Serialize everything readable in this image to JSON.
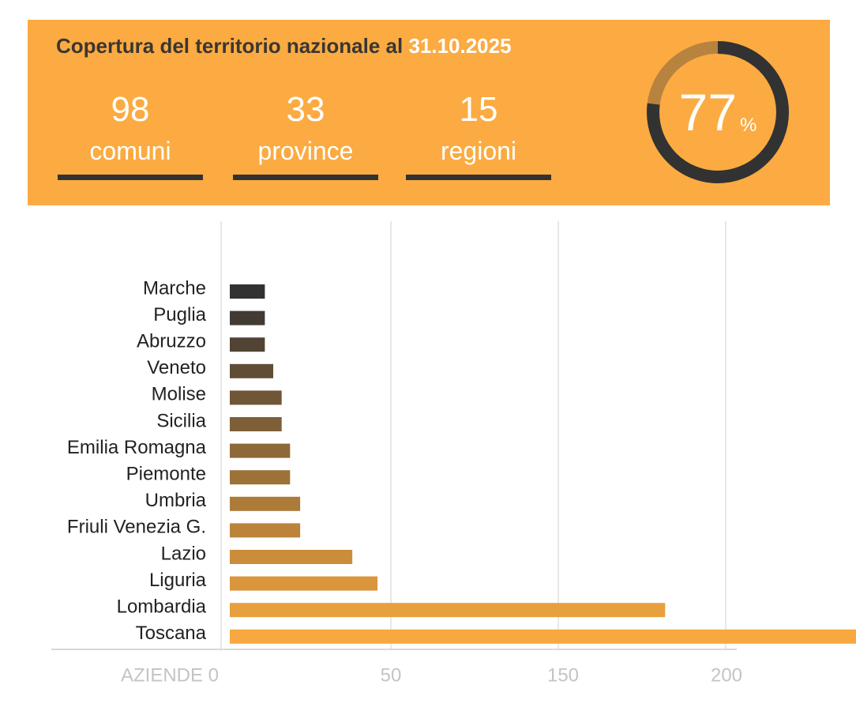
{
  "banner": {
    "title": "Copertura del territorio nazionale al",
    "date": "31.10.2025",
    "stats": [
      {
        "value": "98",
        "label": "comuni"
      },
      {
        "value": "33",
        "label": "province"
      },
      {
        "value": "15",
        "label": "regioni"
      }
    ],
    "coverage_percent": 77,
    "coverage_text": "77",
    "percent_sign": "%"
  },
  "colors": {
    "banner": "#fbab41",
    "dark": "#333232",
    "gauge_fill": "#b8823f",
    "bar_top": "#333232",
    "bar_bottom": "#f7a83e"
  },
  "chart_data": {
    "type": "bar",
    "orientation": "horizontal",
    "categories": [
      "Marche",
      "Puglia",
      "Abruzzo",
      "Veneto",
      "Molise",
      "Sicilia",
      "Emilia Romagna",
      "Piemonte",
      "Umbria",
      "Friuli Venezia G.",
      "Lazio",
      "Liguria",
      "Lombardia",
      "Toscana"
    ],
    "values": [
      13,
      13,
      13,
      15.5,
      18,
      18,
      20.5,
      20.5,
      23.5,
      23.5,
      39,
      46.5,
      132,
      195
    ],
    "x_ticks": [
      "AZIENDE 0",
      "50",
      "150",
      "200"
    ],
    "grid": true
  }
}
